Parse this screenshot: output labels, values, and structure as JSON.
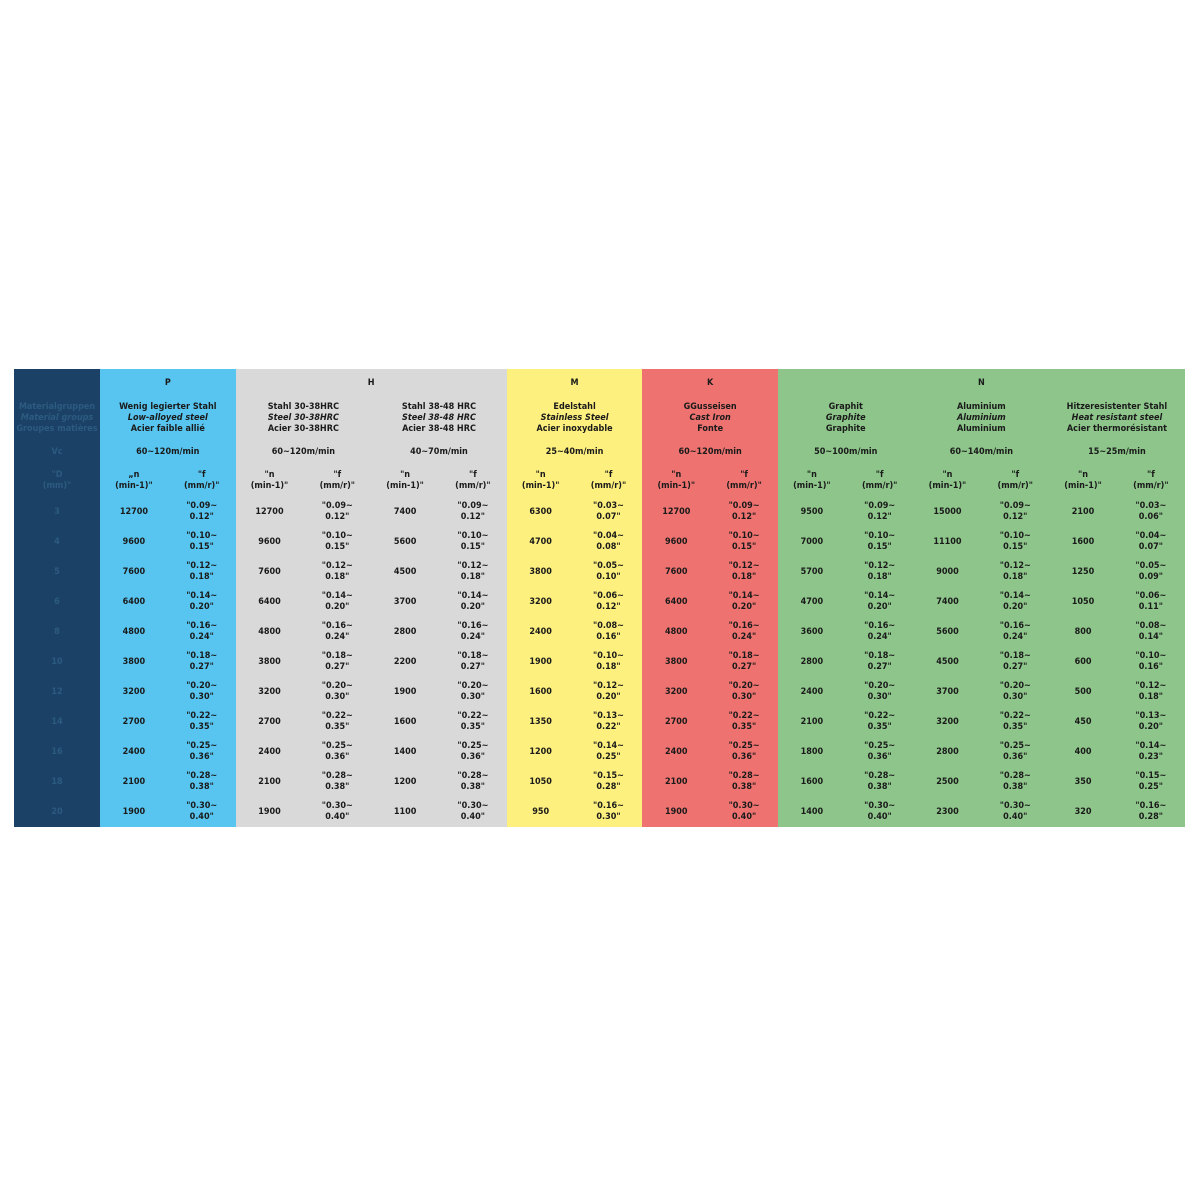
{
  "left_header": {
    "groups_de": "Materialgruppen",
    "groups_en": "Material groups",
    "groups_fr": "Groupes matières",
    "vc": "Vc",
    "diameter": "\"D\n(mm)\"",
    "diameters": [
      "3",
      "4",
      "5",
      "6",
      "8",
      "10",
      "12",
      "14",
      "16",
      "18",
      "20"
    ]
  },
  "groups": [
    {
      "letter": "P",
      "span": 1,
      "color": "#57c5f0"
    },
    {
      "letter": "H",
      "span": 2,
      "color": "#d9d9d9"
    },
    {
      "letter": "M",
      "span": 1,
      "color": "#fdf07f"
    },
    {
      "letter": "K",
      "span": 1,
      "color": "#ee7370"
    },
    {
      "letter": "N",
      "span": 3,
      "color": "#8dc58a"
    }
  ],
  "materials": [
    {
      "de": "Wenig legierter Stahl",
      "en": "Low-alloyed steel",
      "fr": "Acier faible allié",
      "vc": "60~120m/min",
      "color": "#57c5f0",
      "n_header": "„n\n(min-1)\"",
      "f_header": "\"f\n(mm/r)\"",
      "n": [
        "12700",
        "9600",
        "7600",
        "6400",
        "4800",
        "3800",
        "3200",
        "2700",
        "2400",
        "2100",
        "1900"
      ],
      "f": [
        "\"0.09~\n0.12\"",
        "\"0.10~\n0.15\"",
        "\"0.12~\n0.18\"",
        "\"0.14~\n0.20\"",
        "\"0.16~\n0.24\"",
        "\"0.18~\n0.27\"",
        "\"0.20~\n0.30\"",
        "\"0.22~\n0.35\"",
        "\"0.25~\n0.36\"",
        "\"0.28~\n0.38\"",
        "\"0.30~\n0.40\""
      ]
    },
    {
      "de": "Stahl 30-38HRC",
      "en": "Steel 30-38HRC",
      "fr": "Acier 30-38HRC",
      "vc": "60~120m/min",
      "color": "#d9d9d9",
      "n_header": "\"n\n(min-1)\"",
      "f_header": "\"f\n(mm/r)\"",
      "n": [
        "12700",
        "9600",
        "7600",
        "6400",
        "4800",
        "3800",
        "3200",
        "2700",
        "2400",
        "2100",
        "1900"
      ],
      "f": [
        "\"0.09~\n0.12\"",
        "\"0.10~\n0.15\"",
        "\"0.12~\n0.18\"",
        "\"0.14~\n0.20\"",
        "\"0.16~\n0.24\"",
        "\"0.18~\n0.27\"",
        "\"0.20~\n0.30\"",
        "\"0.22~\n0.35\"",
        "\"0.25~\n0.36\"",
        "\"0.28~\n0.38\"",
        "\"0.30~\n0.40\""
      ]
    },
    {
      "de": "Stahl 38-48 HRC",
      "en": "Steel 38-48 HRC",
      "fr": "Acier 38-48 HRC",
      "vc": "40~70m/min",
      "color": "#d9d9d9",
      "n_header": "\"n\n(min-1)\"",
      "f_header": "\"f\n(mm/r)\"",
      "n": [
        "7400",
        "5600",
        "4500",
        "3700",
        "2800",
        "2200",
        "1900",
        "1600",
        "1400",
        "1200",
        "1100"
      ],
      "f": [
        "\"0.09~\n0.12\"",
        "\"0.10~\n0.15\"",
        "\"0.12~\n0.18\"",
        "\"0.14~\n0.20\"",
        "\"0.16~\n0.24\"",
        "\"0.18~\n0.27\"",
        "\"0.20~\n0.30\"",
        "\"0.22~\n0.35\"",
        "\"0.25~\n0.36\"",
        "\"0.28~\n0.38\"",
        "\"0.30~\n0.40\""
      ]
    },
    {
      "de": "Edelstahl",
      "en": "Stainless Steel",
      "fr": "Acier inoxydable",
      "vc": "25~40m/min",
      "color": "#fdf07f",
      "n_header": "\"n\n(min-1)\"",
      "f_header": "\"f\n(mm/r)\"",
      "n": [
        "6300",
        "4700",
        "3800",
        "3200",
        "2400",
        "1900",
        "1600",
        "1350",
        "1200",
        "1050",
        "950"
      ],
      "f": [
        "\"0.03~\n0.07\"",
        "\"0.04~\n0.08\"",
        "\"0.05~\n0.10\"",
        "\"0.06~\n0.12\"",
        "\"0.08~\n0.16\"",
        "\"0.10~\n0.18\"",
        "\"0.12~\n0.20\"",
        "\"0.13~\n0.22\"",
        "\"0.14~\n0.25\"",
        "\"0.15~\n0.28\"",
        "\"0.16~\n0.30\""
      ]
    },
    {
      "de": "GGusseisen",
      "en": "Cast Iron",
      "fr": "Fonte",
      "vc": "60~120m/min",
      "color": "#ee7370",
      "n_header": "\"n\n(min-1)\"",
      "f_header": "\"f\n(mm/r)\"",
      "n": [
        "12700",
        "9600",
        "7600",
        "6400",
        "4800",
        "3800",
        "3200",
        "2700",
        "2400",
        "2100",
        "1900"
      ],
      "f": [
        "\"0.09~\n0.12\"",
        "\"0.10~\n0.15\"",
        "\"0.12~\n0.18\"",
        "\"0.14~\n0.20\"",
        "\"0.16~\n0.24\"",
        "\"0.18~\n0.27\"",
        "\"0.20~\n0.30\"",
        "\"0.22~\n0.35\"",
        "\"0.25~\n0.36\"",
        "\"0.28~\n0.38\"",
        "\"0.30~\n0.40\""
      ]
    },
    {
      "de": "Graphit",
      "en": "Graphite",
      "fr": "Graphite",
      "vc": "50~100m/min",
      "color": "#8dc58a",
      "n_header": "\"n\n(min-1)\"",
      "f_header": "\"f\n(mm/r)\"",
      "n": [
        "9500",
        "7000",
        "5700",
        "4700",
        "3600",
        "2800",
        "2400",
        "2100",
        "1800",
        "1600",
        "1400"
      ],
      "f": [
        "\"0.09~\n0.12\"",
        "\"0.10~\n0.15\"",
        "\"0.12~\n0.18\"",
        "\"0.14~\n0.20\"",
        "\"0.16~\n0.24\"",
        "\"0.18~\n0.27\"",
        "\"0.20~\n0.30\"",
        "\"0.22~\n0.35\"",
        "\"0.25~\n0.36\"",
        "\"0.28~\n0.38\"",
        "\"0.30~\n0.40\""
      ]
    },
    {
      "de": "Aluminium",
      "en": "Aluminium",
      "fr": "Aluminium",
      "vc": "60~140m/min",
      "color": "#8dc58a",
      "n_header": "\"n\n(min-1)\"",
      "f_header": "\"f\n(mm/r)\"",
      "n": [
        "15000",
        "11100",
        "9000",
        "7400",
        "5600",
        "4500",
        "3700",
        "3200",
        "2800",
        "2500",
        "2300"
      ],
      "f": [
        "\"0.09~\n0.12\"",
        "\"0.10~\n0.15\"",
        "\"0.12~\n0.18\"",
        "\"0.14~\n0.20\"",
        "\"0.16~\n0.24\"",
        "\"0.18~\n0.27\"",
        "\"0.20~\n0.30\"",
        "\"0.22~\n0.35\"",
        "\"0.25~\n0.36\"",
        "\"0.28~\n0.38\"",
        "\"0.30~\n0.40\""
      ]
    },
    {
      "de": "Hitzeresistenter Stahl",
      "en": "Heat resistant steel",
      "fr": "Acier thermorésistant",
      "vc": "15~25m/min",
      "color": "#8dc58a",
      "n_header": "\"n\n(min-1)\"",
      "f_header": "\"f\n(mm/r)\"",
      "n": [
        "2100",
        "1600",
        "1250",
        "1050",
        "800",
        "600",
        "500",
        "450",
        "400",
        "350",
        "320"
      ],
      "f": [
        "\"0.03~\n0.06\"",
        "\"0.04~\n0.07\"",
        "\"0.05~\n0.09\"",
        "\"0.06~\n0.11\"",
        "\"0.08~\n0.14\"",
        "\"0.10~\n0.16\"",
        "\"0.12~\n0.18\"",
        "\"0.13~\n0.20\"",
        "\"0.14~\n0.23\"",
        "\"0.15~\n0.25\"",
        "\"0.16~\n0.28\""
      ]
    }
  ]
}
